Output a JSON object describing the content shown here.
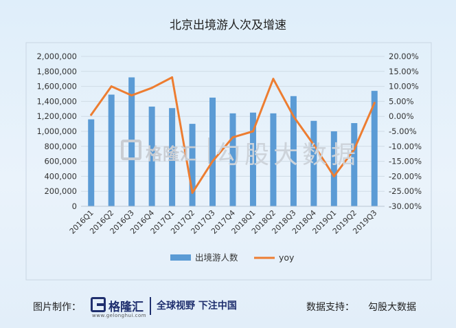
{
  "chart_data": {
    "type": "bar",
    "title": "北京出境游人次及增速",
    "categories": [
      "2016Q1",
      "2016Q2",
      "2016Q3",
      "2016Q4",
      "2017Q1",
      "2017Q2",
      "2017Q3",
      "2017Q4",
      "2018Q1",
      "2018Q2",
      "2018Q3",
      "2018Q4",
      "2019Q1",
      "2019Q2",
      "2019Q3"
    ],
    "series": [
      {
        "name": "出境游人数",
        "type": "bar",
        "axis": "left",
        "color": "#5b9bd5",
        "values": [
          1160000,
          1490000,
          1720000,
          1330000,
          1310000,
          1100000,
          1450000,
          1240000,
          1250000,
          1240000,
          1470000,
          1140000,
          1000000,
          1110000,
          1540000
        ]
      },
      {
        "name": "yoy",
        "type": "line",
        "axis": "right",
        "color": "#ed7d31",
        "values": [
          0.5,
          10.0,
          7.0,
          9.5,
          13.0,
          -25.5,
          -15.0,
          -7.0,
          -5.0,
          12.5,
          0.0,
          -9.5,
          -20.0,
          -11.0,
          4.5
        ]
      }
    ],
    "y_left": {
      "range": [
        0,
        2000000
      ],
      "ticks": [
        0,
        200000,
        400000,
        600000,
        800000,
        1000000,
        1200000,
        1400000,
        1600000,
        1800000,
        2000000
      ],
      "tick_labels": [
        "0",
        "200,000",
        "400,000",
        "600,000",
        "800,000",
        "1,000,000",
        "1,200,000",
        "1,400,000",
        "1,600,000",
        "1,800,000",
        "2,000,000"
      ]
    },
    "y_right": {
      "range": [
        -30,
        20
      ],
      "ticks": [
        -30,
        -25,
        -20,
        -15,
        -10,
        -5,
        0,
        5,
        10,
        15,
        20
      ],
      "tick_labels": [
        "-30.00%",
        "-25.00%",
        "-20.00%",
        "-15.00%",
        "-10.00%",
        "-5.00%",
        "0.00%",
        "5.00%",
        "10.00%",
        "15.00%",
        "20.00%"
      ]
    },
    "grid": true,
    "legend": "bottom-center"
  },
  "watermark": {
    "logo_text": "格隆汇",
    "brand_text": "勾股大数据"
  },
  "footer": {
    "made_by_label": "图片制作：",
    "logo_text": "格隆汇",
    "logo_sub": "www.gelonghui.com",
    "slogan": "全球视野 下注中国",
    "support_label": "数据支持：",
    "support_value": "勾股大数据"
  }
}
